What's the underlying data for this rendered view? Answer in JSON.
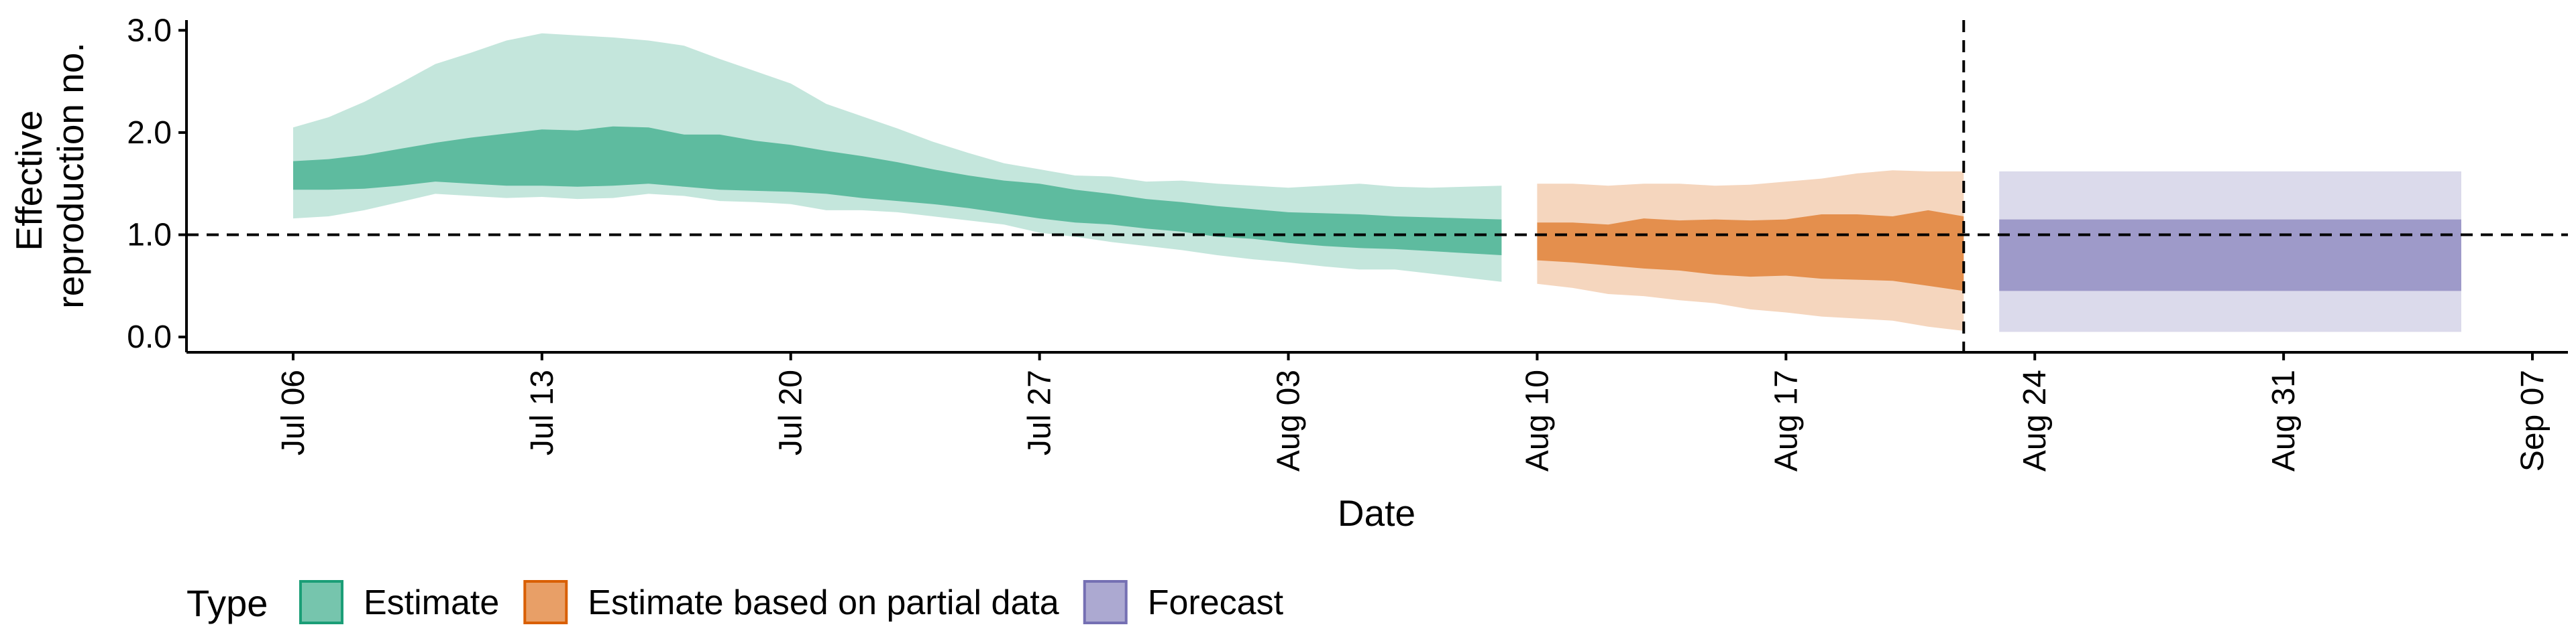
{
  "chart_data": {
    "type": "area",
    "title": "",
    "xlabel": "Date",
    "ylabel": "Effective reproduction no.",
    "ylabel_lines": [
      "Effective",
      "reproduction no."
    ],
    "xlim": [
      "2020-07-03",
      "2020-09-08"
    ],
    "ylim": [
      -0.15,
      3.1
    ],
    "y_ticks": [
      0.0,
      1.0,
      2.0,
      3.0
    ],
    "y_tick_labels": [
      "0.0",
      "1.0",
      "2.0",
      "3.0"
    ],
    "x_ticks": [
      "2020-07-06",
      "2020-07-13",
      "2020-07-20",
      "2020-07-27",
      "2020-08-03",
      "2020-08-10",
      "2020-08-17",
      "2020-08-24",
      "2020-08-31",
      "2020-09-07"
    ],
    "x_tick_labels": [
      "Jul 06",
      "Jul 13",
      "Jul 20",
      "Jul 27",
      "Aug 03",
      "Aug 10",
      "Aug 17",
      "Aug 24",
      "Aug 31",
      "Sep 07"
    ],
    "reference_hline": 1.0,
    "reference_vline": "2020-08-22",
    "grid": false,
    "legend": {
      "title": "Type",
      "position": "bottom-left",
      "items": [
        {
          "label": "Estimate",
          "color": "#1b9e77"
        },
        {
          "label": "Estimate based on partial data",
          "color": "#d95f02"
        },
        {
          "label": "Forecast",
          "color": "#7570b3"
        }
      ]
    },
    "series": [
      {
        "name": "Estimate",
        "color": "#1b9e77",
        "x": [
          "2020-07-06",
          "2020-07-07",
          "2020-07-08",
          "2020-07-09",
          "2020-07-10",
          "2020-07-11",
          "2020-07-12",
          "2020-07-13",
          "2020-07-14",
          "2020-07-15",
          "2020-07-16",
          "2020-07-17",
          "2020-07-18",
          "2020-07-19",
          "2020-07-20",
          "2020-07-21",
          "2020-07-22",
          "2020-07-23",
          "2020-07-24",
          "2020-07-25",
          "2020-07-26",
          "2020-07-27",
          "2020-07-28",
          "2020-07-29",
          "2020-07-30",
          "2020-07-31",
          "2020-08-01",
          "2020-08-02",
          "2020-08-03",
          "2020-08-04",
          "2020-08-05",
          "2020-08-06",
          "2020-08-07",
          "2020-08-08",
          "2020-08-09"
        ],
        "outer_lower": [
          1.16,
          1.18,
          1.24,
          1.32,
          1.4,
          1.38,
          1.36,
          1.37,
          1.35,
          1.36,
          1.4,
          1.38,
          1.33,
          1.32,
          1.3,
          1.24,
          1.24,
          1.22,
          1.18,
          1.14,
          1.1,
          1.02,
          0.98,
          0.93,
          0.89,
          0.85,
          0.8,
          0.76,
          0.73,
          0.69,
          0.66,
          0.66,
          0.62,
          0.58,
          0.54
        ],
        "inner_lower": [
          1.44,
          1.44,
          1.45,
          1.48,
          1.52,
          1.5,
          1.48,
          1.48,
          1.47,
          1.48,
          1.5,
          1.47,
          1.44,
          1.43,
          1.42,
          1.4,
          1.36,
          1.33,
          1.3,
          1.26,
          1.21,
          1.16,
          1.12,
          1.1,
          1.06,
          1.03,
          0.98,
          0.96,
          0.92,
          0.89,
          0.87,
          0.86,
          0.84,
          0.82,
          0.8
        ],
        "inner_upper": [
          1.72,
          1.74,
          1.78,
          1.84,
          1.9,
          1.95,
          1.99,
          2.03,
          2.02,
          2.06,
          2.05,
          1.98,
          1.98,
          1.92,
          1.88,
          1.82,
          1.77,
          1.71,
          1.64,
          1.58,
          1.53,
          1.5,
          1.44,
          1.4,
          1.35,
          1.32,
          1.28,
          1.25,
          1.22,
          1.21,
          1.2,
          1.18,
          1.17,
          1.16,
          1.15
        ],
        "outer_upper": [
          2.05,
          2.15,
          2.3,
          2.48,
          2.67,
          2.78,
          2.9,
          2.97,
          2.95,
          2.93,
          2.9,
          2.85,
          2.72,
          2.6,
          2.48,
          2.28,
          2.16,
          2.04,
          1.91,
          1.8,
          1.7,
          1.64,
          1.58,
          1.57,
          1.52,
          1.53,
          1.5,
          1.48,
          1.46,
          1.48,
          1.5,
          1.47,
          1.46,
          1.47,
          1.48
        ]
      },
      {
        "name": "Estimate based on partial data",
        "color": "#d95f02",
        "x": [
          "2020-08-10",
          "2020-08-11",
          "2020-08-12",
          "2020-08-13",
          "2020-08-14",
          "2020-08-15",
          "2020-08-16",
          "2020-08-17",
          "2020-08-18",
          "2020-08-19",
          "2020-08-20",
          "2020-08-21",
          "2020-08-22"
        ],
        "outer_lower": [
          0.52,
          0.48,
          0.42,
          0.4,
          0.36,
          0.33,
          0.27,
          0.24,
          0.2,
          0.18,
          0.16,
          0.1,
          0.06
        ],
        "inner_lower": [
          0.75,
          0.73,
          0.7,
          0.67,
          0.65,
          0.61,
          0.59,
          0.6,
          0.57,
          0.56,
          0.55,
          0.5,
          0.45
        ],
        "inner_upper": [
          1.12,
          1.12,
          1.1,
          1.16,
          1.14,
          1.15,
          1.14,
          1.15,
          1.2,
          1.2,
          1.18,
          1.24,
          1.18
        ],
        "outer_upper": [
          1.5,
          1.5,
          1.48,
          1.5,
          1.5,
          1.48,
          1.49,
          1.52,
          1.55,
          1.6,
          1.63,
          1.62,
          1.62
        ]
      },
      {
        "name": "Forecast",
        "color": "#7570b3",
        "x": [
          "2020-08-23",
          "2020-09-05"
        ],
        "outer_lower": [
          0.05,
          0.05
        ],
        "inner_lower": [
          0.45,
          0.45
        ],
        "inner_upper": [
          1.15,
          1.15
        ],
        "outer_upper": [
          1.62,
          1.62
        ]
      }
    ]
  }
}
